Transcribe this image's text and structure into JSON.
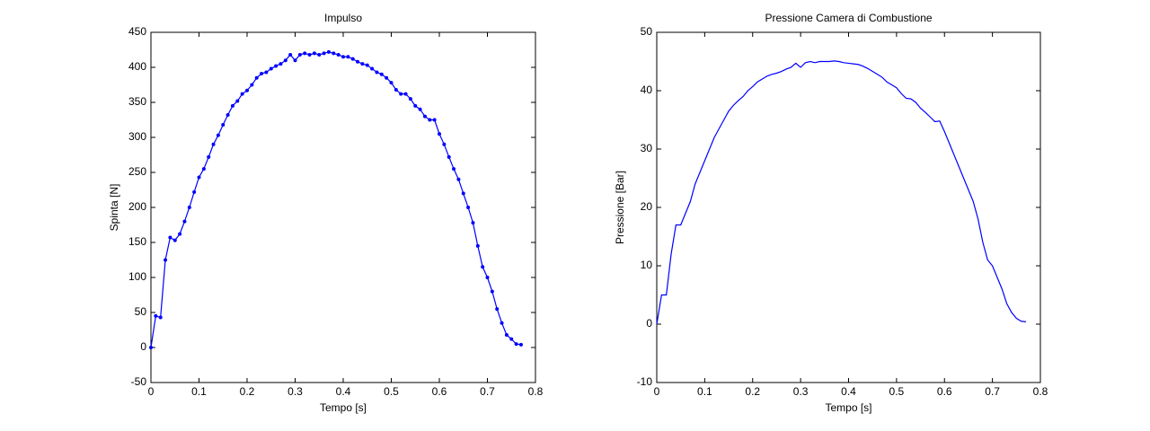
{
  "chart_data": [
    {
      "type": "line",
      "title": "Impulso",
      "xlabel": "Tempo [s]",
      "ylabel": "Spinta [N]",
      "marker": true,
      "xlim": [
        0,
        0.8
      ],
      "xticks": [
        0,
        0.1,
        0.2,
        0.3,
        0.4,
        0.5,
        0.6,
        0.7,
        0.8
      ],
      "ylim": [
        -50,
        450
      ],
      "yticks": [
        -50,
        0,
        50,
        100,
        150,
        200,
        250,
        300,
        350,
        400,
        450
      ],
      "x": [
        0,
        0.01,
        0.02,
        0.03,
        0.04,
        0.05,
        0.06,
        0.07,
        0.08,
        0.09,
        0.1,
        0.11,
        0.12,
        0.13,
        0.14,
        0.15,
        0.16,
        0.17,
        0.18,
        0.19,
        0.2,
        0.21,
        0.22,
        0.23,
        0.24,
        0.25,
        0.26,
        0.27,
        0.28,
        0.29,
        0.3,
        0.31,
        0.32,
        0.33,
        0.34,
        0.35,
        0.36,
        0.37,
        0.38,
        0.39,
        0.4,
        0.41,
        0.42,
        0.43,
        0.44,
        0.45,
        0.46,
        0.47,
        0.48,
        0.49,
        0.5,
        0.51,
        0.52,
        0.53,
        0.54,
        0.55,
        0.56,
        0.57,
        0.58,
        0.59,
        0.6,
        0.61,
        0.62,
        0.63,
        0.64,
        0.65,
        0.66,
        0.67,
        0.68,
        0.69,
        0.7,
        0.71,
        0.72,
        0.73,
        0.74,
        0.75,
        0.76,
        0.77
      ],
      "series": [
        {
          "color": "#0000ff",
          "values": [
            0,
            45,
            43,
            125,
            157,
            153,
            162,
            180,
            200,
            222,
            243,
            255,
            272,
            290,
            303,
            318,
            332,
            345,
            352,
            362,
            367,
            375,
            385,
            391,
            393,
            398,
            402,
            405,
            410,
            418,
            410,
            418,
            420,
            418,
            420,
            418,
            420,
            422,
            420,
            418,
            415,
            415,
            412,
            408,
            405,
            403,
            398,
            393,
            390,
            385,
            378,
            368,
            362,
            362,
            355,
            345,
            340,
            330,
            325,
            325,
            305,
            290,
            272,
            255,
            240,
            220,
            200,
            178,
            145,
            115,
            100,
            80,
            55,
            35,
            18,
            12,
            5,
            4
          ]
        }
      ]
    },
    {
      "type": "line",
      "title": "Pressione Camera di Combustione",
      "xlabel": "Tempo [s]",
      "ylabel": "Pressione [Bar]",
      "marker": false,
      "xlim": [
        0,
        0.8
      ],
      "xticks": [
        0,
        0.1,
        0.2,
        0.3,
        0.4,
        0.5,
        0.6,
        0.7,
        0.8
      ],
      "ylim": [
        -10,
        50
      ],
      "yticks": [
        -10,
        0,
        10,
        20,
        30,
        40,
        50
      ],
      "x": [
        0,
        0.01,
        0.02,
        0.03,
        0.04,
        0.05,
        0.06,
        0.07,
        0.08,
        0.09,
        0.1,
        0.11,
        0.12,
        0.13,
        0.14,
        0.15,
        0.16,
        0.17,
        0.18,
        0.19,
        0.2,
        0.21,
        0.22,
        0.23,
        0.24,
        0.25,
        0.26,
        0.27,
        0.28,
        0.29,
        0.3,
        0.31,
        0.32,
        0.33,
        0.34,
        0.35,
        0.36,
        0.37,
        0.38,
        0.39,
        0.4,
        0.41,
        0.42,
        0.43,
        0.44,
        0.45,
        0.46,
        0.47,
        0.48,
        0.49,
        0.5,
        0.51,
        0.52,
        0.53,
        0.54,
        0.55,
        0.56,
        0.57,
        0.58,
        0.59,
        0.6,
        0.61,
        0.62,
        0.63,
        0.64,
        0.65,
        0.66,
        0.67,
        0.68,
        0.69,
        0.7,
        0.71,
        0.72,
        0.73,
        0.74,
        0.75,
        0.76,
        0.77
      ],
      "series": [
        {
          "color": "#0000ff",
          "values": [
            0,
            5,
            5,
            12,
            17,
            17,
            19,
            21,
            24,
            26,
            28,
            30,
            32,
            33.5,
            35,
            36.5,
            37.5,
            38.3,
            39,
            40,
            40.7,
            41.5,
            42,
            42.5,
            42.8,
            43,
            43.3,
            43.7,
            44,
            44.7,
            44,
            44.8,
            45,
            44.8,
            45,
            45,
            45,
            45.1,
            45,
            44.8,
            44.7,
            44.6,
            44.5,
            44.2,
            43.8,
            43.3,
            42.8,
            42.3,
            41.5,
            41,
            40.5,
            39.5,
            38.7,
            38.6,
            38,
            37,
            36.3,
            35.5,
            34.7,
            34.8,
            33,
            31,
            29,
            27,
            25,
            23,
            21,
            18,
            14,
            11,
            10,
            8,
            6,
            3.5,
            2,
            1,
            0.5,
            0.4
          ]
        }
      ]
    }
  ]
}
